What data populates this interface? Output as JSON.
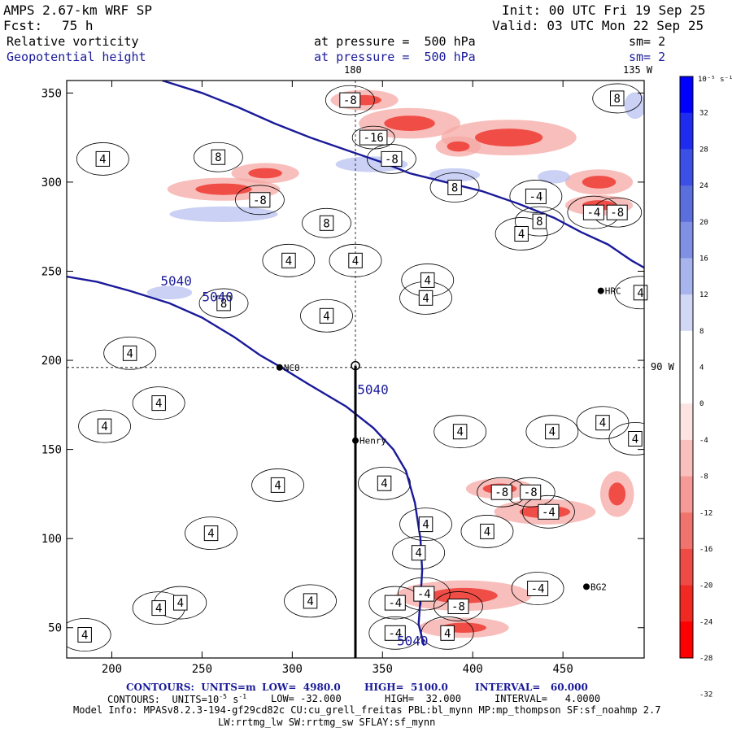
{
  "header": {
    "model_title": "AMPS 2.67-km WRF SP",
    "init": "Init: 00 UTC Fri 19 Sep 25",
    "fcst_label": "Fcst:",
    "fcst_value": "75 h",
    "valid": "Valid: 03 UTC Mon 22 Sep 25",
    "field1_name": "Relative vorticity",
    "field1_pressure": "at pressure =  500 hPa",
    "field1_sm": "sm= 2",
    "field2_name": "Geopotential height",
    "field2_pressure": "at pressure =  500 hPa",
    "field2_sm": "sm= 2",
    "top_label_180": "180",
    "top_label_135w": "135 W",
    "right_label_90w": "90 W"
  },
  "footer": {
    "contours1_units_label": "CONTOURS:  UNITS=m",
    "contours1_low": "LOW=  4980.0",
    "contours1_high": "HIGH=  5100.0",
    "contours1_interval": "INTERVAL=   60.000",
    "contours2_units_label": "CONTOURS:  UNITS=10",
    "contours2_units_exp": "-5",
    "contours2_units_tail": " s",
    "contours2_units_exp2": "-1",
    "contours2_low": "LOW= -32.000",
    "contours2_high": "HIGH=  32.000",
    "contours2_interval": "INTERVAL=   4.0000",
    "model_info": "Model Info: MPASv8.2.3-194-gf29cd82c CU:cu_grell_freitas PBL:bl_mynn MP:mp_thompson SF:sf_noahmp 2.7",
    "model_info2": "LW:rrtmg_lw SW:rrtmg_sw SFLAY:sf_mynn"
  },
  "colorbar": {
    "unit_label": "10⁻⁵ s⁻¹",
    "ticks": [
      "32",
      "28",
      "24",
      "20",
      "16",
      "12",
      "8",
      "4",
      "0",
      "-4",
      "-8",
      "-12",
      "-16",
      "-20",
      "-24",
      "-28",
      "-32"
    ],
    "colors": [
      "#0000ff",
      "#1f2cf0",
      "#3c4fe6",
      "#5a6edc",
      "#8090e4",
      "#a8b4ee",
      "#d0d8f6",
      "#ffffff",
      "#ffffff",
      "#fde4e2",
      "#f9c0bd",
      "#f59a96",
      "#f1736d",
      "#ee4b44",
      "#f02a22",
      "#ff0000"
    ]
  },
  "chart_data": {
    "type": "heatmap",
    "title": "Relative vorticity / Geopotential height at 500 hPa",
    "x_ticks": [
      200,
      250,
      300,
      350,
      400,
      450
    ],
    "y_ticks": [
      50,
      100,
      150,
      200,
      250,
      300,
      350
    ],
    "xlim": [
      175,
      495
    ],
    "ylim": [
      33,
      357
    ],
    "height_contours": [
      {
        "label": "5040",
        "points": [
          [
            175,
            247
          ],
          [
            192,
            244
          ],
          [
            210,
            239
          ],
          [
            232,
            232
          ],
          [
            250,
            224
          ],
          [
            268,
            213
          ],
          [
            282,
            203
          ],
          [
            294,
            196
          ],
          [
            310,
            186
          ],
          [
            330,
            174
          ],
          [
            345,
            162
          ],
          [
            356,
            150
          ],
          [
            363,
            138
          ],
          [
            368,
            120
          ],
          [
            371,
            100
          ],
          [
            372,
            82
          ],
          [
            371,
            66
          ],
          [
            370,
            52
          ],
          [
            373,
            40
          ]
        ]
      },
      {
        "label": "",
        "points": [
          [
            228,
            357
          ],
          [
            250,
            350
          ],
          [
            270,
            342
          ],
          [
            290,
            333
          ],
          [
            310,
            325
          ],
          [
            330,
            318
          ],
          [
            350,
            311
          ],
          [
            365,
            305
          ],
          [
            385,
            300
          ],
          [
            405,
            295
          ],
          [
            425,
            288
          ],
          [
            445,
            280
          ],
          [
            460,
            272
          ],
          [
            475,
            265
          ],
          [
            488,
            256
          ],
          [
            495,
            252
          ]
        ]
      }
    ],
    "height_labels": [
      {
        "text": "5040",
        "x": 227,
        "y": 242
      },
      {
        "text": "5040",
        "x": 250,
        "y": 233
      },
      {
        "text": "5040",
        "x": 336,
        "y": 181
      },
      {
        "text": "5040",
        "x": 358,
        "y": 40
      }
    ],
    "vorticity_labels": [
      {
        "text": "-8",
        "x": 332,
        "y": 346
      },
      {
        "text": "-16",
        "x": 345,
        "y": 325
      },
      {
        "text": "-8",
        "x": 355,
        "y": 313
      },
      {
        "text": "8",
        "x": 480,
        "y": 347
      },
      {
        "text": "8",
        "x": 259,
        "y": 314
      },
      {
        "text": "-8",
        "x": 282,
        "y": 290
      },
      {
        "text": "4",
        "x": 195,
        "y": 313
      },
      {
        "text": "8",
        "x": 390,
        "y": 297
      },
      {
        "text": "-4",
        "x": 435,
        "y": 292
      },
      {
        "text": "8",
        "x": 437,
        "y": 278
      },
      {
        "text": "-4",
        "x": 467,
        "y": 283
      },
      {
        "text": "-8",
        "x": 480,
        "y": 283
      },
      {
        "text": "4",
        "x": 427,
        "y": 271
      },
      {
        "text": "8",
        "x": 319,
        "y": 277
      },
      {
        "text": "4",
        "x": 298,
        "y": 256
      },
      {
        "text": "4",
        "x": 335,
        "y": 256
      },
      {
        "text": "4",
        "x": 375,
        "y": 245
      },
      {
        "text": "4",
        "x": 374,
        "y": 235
      },
      {
        "text": "4",
        "x": 493,
        "y": 238
      },
      {
        "text": "8",
        "x": 262,
        "y": 232
      },
      {
        "text": "4",
        "x": 319,
        "y": 225
      },
      {
        "text": "4",
        "x": 210,
        "y": 204
      },
      {
        "text": "4",
        "x": 226,
        "y": 176
      },
      {
        "text": "4",
        "x": 196,
        "y": 163
      },
      {
        "text": "4",
        "x": 393,
        "y": 160
      },
      {
        "text": "4",
        "x": 444,
        "y": 160
      },
      {
        "text": "4",
        "x": 472,
        "y": 165
      },
      {
        "text": "4",
        "x": 490,
        "y": 156
      },
      {
        "text": "4",
        "x": 292,
        "y": 130
      },
      {
        "text": "4",
        "x": 351,
        "y": 131
      },
      {
        "text": "-8",
        "x": 416,
        "y": 126
      },
      {
        "text": "-8",
        "x": 432,
        "y": 126
      },
      {
        "text": "-4",
        "x": 442,
        "y": 115
      },
      {
        "text": "4",
        "x": 374,
        "y": 108
      },
      {
        "text": "4",
        "x": 408,
        "y": 104
      },
      {
        "text": "4",
        "x": 255,
        "y": 103
      },
      {
        "text": "4",
        "x": 370,
        "y": 92
      },
      {
        "text": "-4",
        "x": 436,
        "y": 72
      },
      {
        "text": "-4",
        "x": 373,
        "y": 69
      },
      {
        "text": "-8",
        "x": 392,
        "y": 62
      },
      {
        "text": "-4",
        "x": 357,
        "y": 64
      },
      {
        "text": "4",
        "x": 310,
        "y": 65
      },
      {
        "text": "4",
        "x": 238,
        "y": 64
      },
      {
        "text": "4",
        "x": 226,
        "y": 61
      },
      {
        "text": "-4",
        "x": 357,
        "y": 47
      },
      {
        "text": "4",
        "x": 386,
        "y": 47
      },
      {
        "text": "4",
        "x": 185,
        "y": 46
      }
    ],
    "stations": [
      {
        "name": "NCO",
        "x": 293,
        "y": 196
      },
      {
        "name": "Henry",
        "x": 335,
        "y": 155
      },
      {
        "name": "HRC",
        "x": 471,
        "y": 239
      },
      {
        "name": "BG2",
        "x": 463,
        "y": 73
      }
    ],
    "positive_patches": [
      [
        344,
        310,
        40,
        7
      ],
      [
        390,
        304,
        28,
        6
      ],
      [
        445,
        303,
        18,
        6
      ],
      [
        262,
        282,
        60,
        7
      ],
      [
        232,
        238,
        25,
        6
      ],
      [
        490,
        343,
        12,
        12
      ]
    ],
    "negative_patches": [
      [
        365,
        333,
        45,
        12
      ],
      [
        420,
        325,
        60,
        14
      ],
      [
        340,
        346,
        30,
        8
      ],
      [
        285,
        305,
        30,
        8
      ],
      [
        262,
        296,
        50,
        9
      ],
      [
        392,
        320,
        20,
        8
      ],
      [
        470,
        300,
        30,
        10
      ],
      [
        470,
        287,
        30,
        8
      ],
      [
        440,
        115,
        45,
        10
      ],
      [
        395,
        68,
        60,
        12
      ],
      [
        395,
        50,
        40,
        8
      ],
      [
        415,
        128,
        30,
        8
      ],
      [
        480,
        125,
        15,
        18
      ]
    ],
    "cross_section": {
      "x": 335,
      "y_start": 33,
      "y_end": 197
    },
    "guide_lines": {
      "x180": 335,
      "y90w": 196
    }
  }
}
